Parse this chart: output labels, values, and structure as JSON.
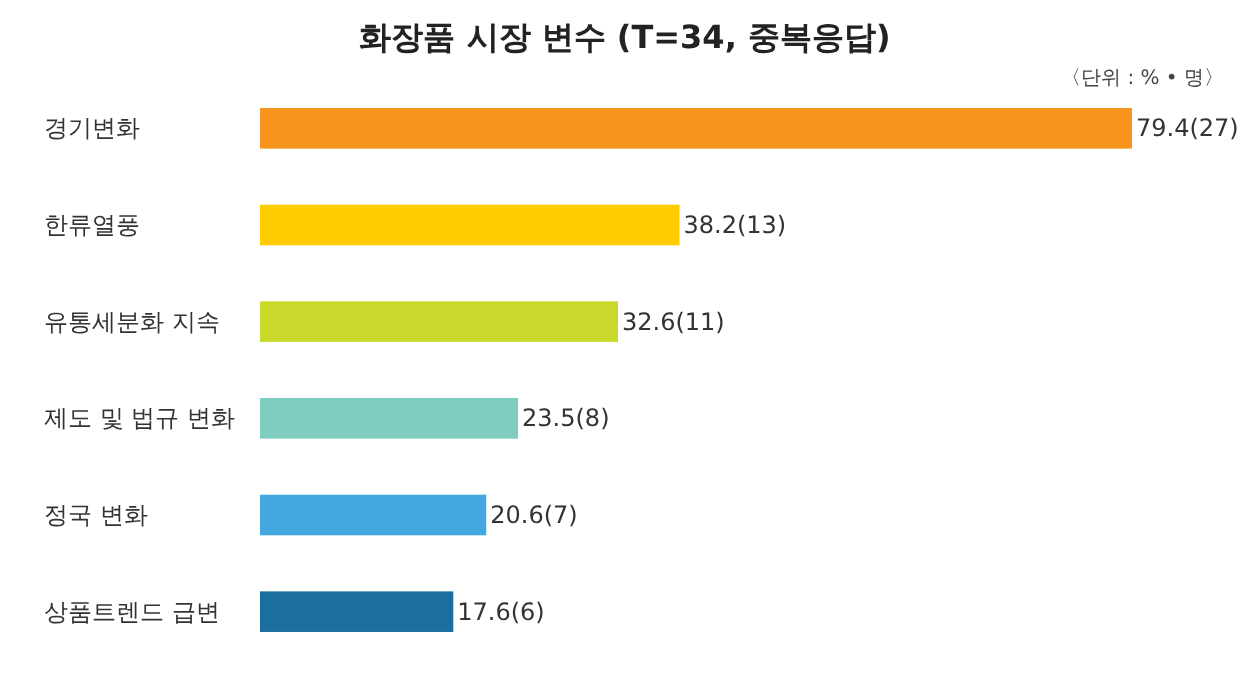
{
  "chart_data": {
    "type": "bar",
    "orientation": "horizontal",
    "title": "화장품 시장 변수 (T=34, 중복응답)",
    "annotations": [
      "〈단위 : % • 명〉"
    ],
    "categories": [
      "경기변화",
      "한류열풍",
      "유통세분화 지속",
      "제도 및 법규 변화",
      "정국 변화",
      "상품트렌드 급변"
    ],
    "values": [
      79.4,
      38.2,
      32.6,
      23.5,
      20.6,
      17.6
    ],
    "colors": [
      "#f7941d",
      "#ffcc00",
      "#c9d92b",
      "#7ecdc0",
      "#44a8e0",
      "#1b6fa0"
    ],
    "value_labels": [
      "79.4(27)",
      "38.2(13)",
      "32.6(11)",
      "23.5(8)",
      "20.6(7)",
      "17.6(6)"
    ],
    "data_labels": false
  }
}
